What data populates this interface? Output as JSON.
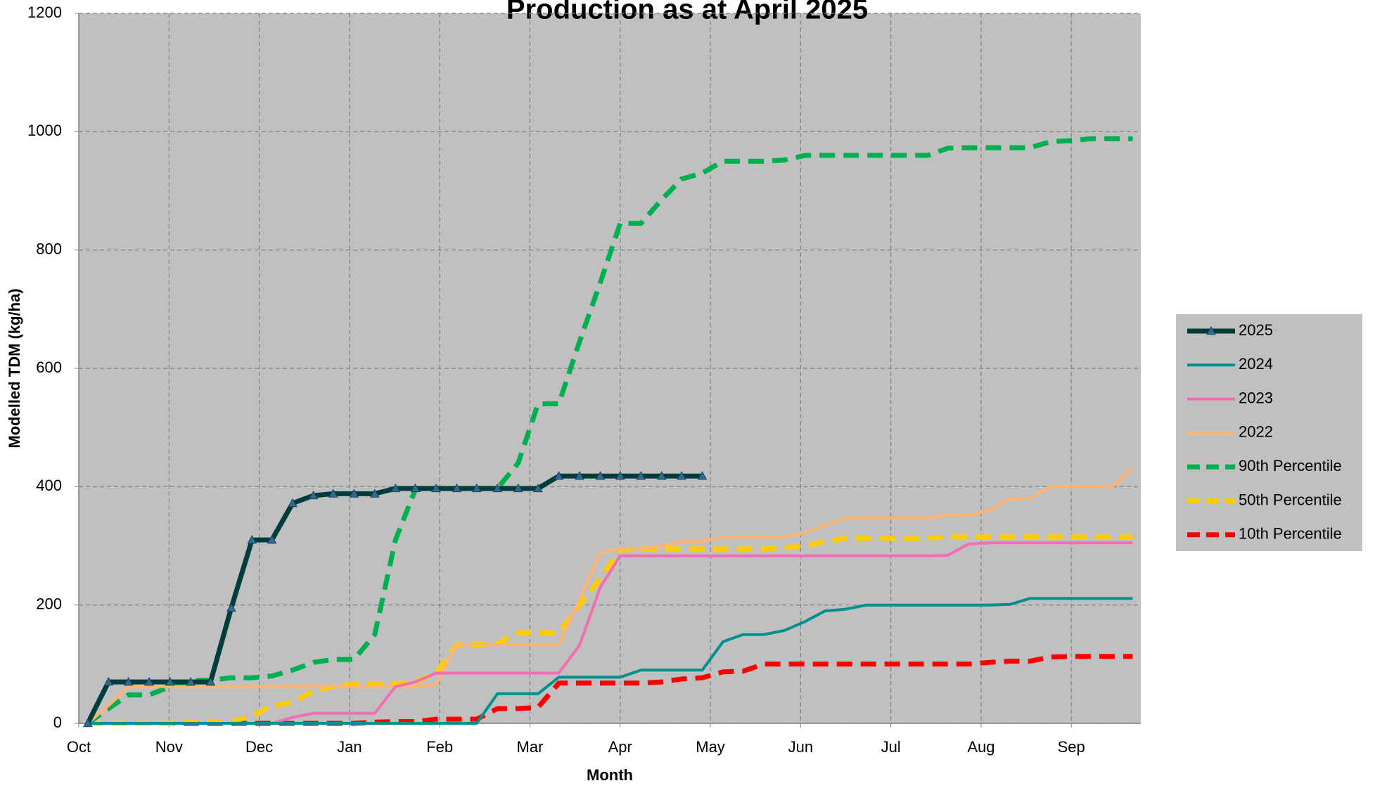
{
  "chart_data": {
    "type": "line",
    "title": "Production as at April 2025",
    "x_label": "Month",
    "y_label": "Modelled TDM (kg/ha)",
    "x": [
      0.1,
      0.33,
      0.55,
      0.78,
      1.01,
      1.24,
      1.46,
      1.69,
      1.92,
      2.14,
      2.37,
      2.6,
      2.82,
      3.05,
      3.28,
      3.51,
      3.73,
      3.96,
      4.19,
      4.41,
      4.64,
      4.87,
      5.09,
      5.32,
      5.55,
      5.78,
      6.0,
      6.23,
      6.46,
      6.68,
      6.91,
      7.14,
      7.36,
      7.59,
      7.82,
      8.05,
      8.27,
      8.5,
      8.73,
      8.95,
      9.18,
      9.41,
      9.63,
      9.86,
      10.09,
      10.32,
      10.54,
      10.77,
      11.0,
      11.22,
      11.45,
      11.68
    ],
    "xlim": [
      0,
      11.77
    ],
    "xticks": [
      {
        "value": 0,
        "label": "Oct"
      },
      {
        "value": 1,
        "label": "Nov"
      },
      {
        "value": 2,
        "label": "Dec"
      },
      {
        "value": 3,
        "label": "Jan"
      },
      {
        "value": 4,
        "label": "Feb"
      },
      {
        "value": 5,
        "label": "Mar"
      },
      {
        "value": 6,
        "label": "Apr"
      },
      {
        "value": 7,
        "label": "May"
      },
      {
        "value": 8,
        "label": "Jun"
      },
      {
        "value": 9,
        "label": "Jul"
      },
      {
        "value": 10,
        "label": "Aug"
      },
      {
        "value": 11,
        "label": "Sep"
      }
    ],
    "ylim": [
      0,
      1200
    ],
    "yticks": [
      0,
      200,
      400,
      600,
      800,
      1000,
      1200
    ],
    "grid": true,
    "legend": "right",
    "series": [
      {
        "name": "2025",
        "color": "#003c3c",
        "style": "solid",
        "marker": "triangle",
        "values": [
          0,
          70,
          70,
          70,
          70,
          70,
          70,
          195,
          310,
          310,
          372,
          385,
          388,
          388,
          388,
          397,
          397,
          397,
          397,
          397,
          397,
          397,
          397,
          418,
          418,
          418,
          418,
          418,
          418,
          418,
          418,
          null,
          null,
          null,
          null,
          null,
          null,
          null,
          null,
          null,
          null,
          null,
          null,
          null,
          null,
          null,
          null,
          null,
          null,
          null,
          null,
          null
        ]
      },
      {
        "name": "2024",
        "color": "#009090",
        "style": "solid",
        "values": [
          0,
          0,
          0,
          0,
          0,
          0,
          0,
          0,
          0,
          0,
          0,
          0,
          0,
          0,
          0,
          0,
          0,
          0,
          0,
          0,
          50,
          50,
          50,
          78,
          78,
          78,
          78,
          90,
          90,
          90,
          90,
          138,
          150,
          150,
          157,
          172,
          190,
          193,
          200,
          200,
          200,
          200,
          200,
          200,
          200,
          201,
          211,
          211,
          211,
          211,
          211,
          211
        ]
      },
      {
        "name": "2023",
        "color": "#f46cb4",
        "style": "solid",
        "values": [
          0,
          0,
          0,
          0,
          0,
          0,
          0,
          0,
          0,
          0,
          10,
          17,
          17,
          17,
          17,
          62,
          70,
          85,
          85,
          85,
          85,
          85,
          85,
          85,
          132,
          230,
          283,
          283,
          283,
          283,
          283,
          283,
          283,
          283,
          283,
          283,
          283,
          283,
          283,
          283,
          283,
          283,
          284,
          303,
          305,
          305,
          305,
          305,
          305,
          305,
          305,
          305
        ]
      },
      {
        "name": "2022",
        "color": "#ffb472",
        "style": "solid",
        "values": [
          0,
          30,
          62,
          62,
          62,
          62,
          62,
          62,
          62,
          62,
          62,
          62,
          62,
          62,
          62,
          62,
          62,
          65,
          133,
          133,
          133,
          133,
          133,
          133,
          210,
          288,
          295,
          295,
          300,
          307,
          308,
          315,
          315,
          315,
          315,
          322,
          335,
          347,
          347,
          347,
          347,
          347,
          352,
          352,
          360,
          380,
          380,
          400,
          400,
          400,
          400,
          432
        ]
      },
      {
        "name": "90th Percentile",
        "color": "#00b050",
        "style": "dashed",
        "values": [
          0,
          25,
          48,
          48,
          62,
          72,
          73,
          77,
          77,
          80,
          90,
          103,
          108,
          108,
          150,
          310,
          395,
          397,
          397,
          397,
          397,
          440,
          540,
          540,
          645,
          745,
          845,
          845,
          885,
          920,
          930,
          950,
          950,
          950,
          952,
          960,
          960,
          960,
          960,
          960,
          960,
          960,
          972,
          973,
          973,
          973,
          973,
          983,
          985,
          988,
          988,
          988
        ]
      },
      {
        "name": "50th Percentile",
        "color": "#ffcc00",
        "style": "dashed",
        "values": [
          0,
          0,
          0,
          0,
          0,
          3,
          3,
          3,
          12,
          30,
          35,
          55,
          62,
          67,
          67,
          67,
          70,
          85,
          133,
          133,
          135,
          153,
          153,
          153,
          200,
          245,
          293,
          295,
          295,
          295,
          295,
          295,
          295,
          295,
          297,
          300,
          307,
          313,
          313,
          313,
          313,
          313,
          315,
          315,
          315,
          315,
          315,
          315,
          315,
          315,
          315,
          315
        ]
      },
      {
        "name": "10th Percentile",
        "color": "#ff0000",
        "style": "dashed",
        "values": [
          0,
          0,
          0,
          0,
          0,
          0,
          0,
          0,
          0,
          0,
          0,
          0,
          0,
          0,
          2,
          3,
          3,
          7,
          7,
          7,
          25,
          25,
          27,
          68,
          68,
          68,
          68,
          68,
          70,
          75,
          77,
          87,
          88,
          100,
          100,
          100,
          100,
          100,
          100,
          100,
          100,
          100,
          100,
          100,
          103,
          105,
          105,
          112,
          113,
          113,
          113,
          113
        ]
      }
    ]
  }
}
